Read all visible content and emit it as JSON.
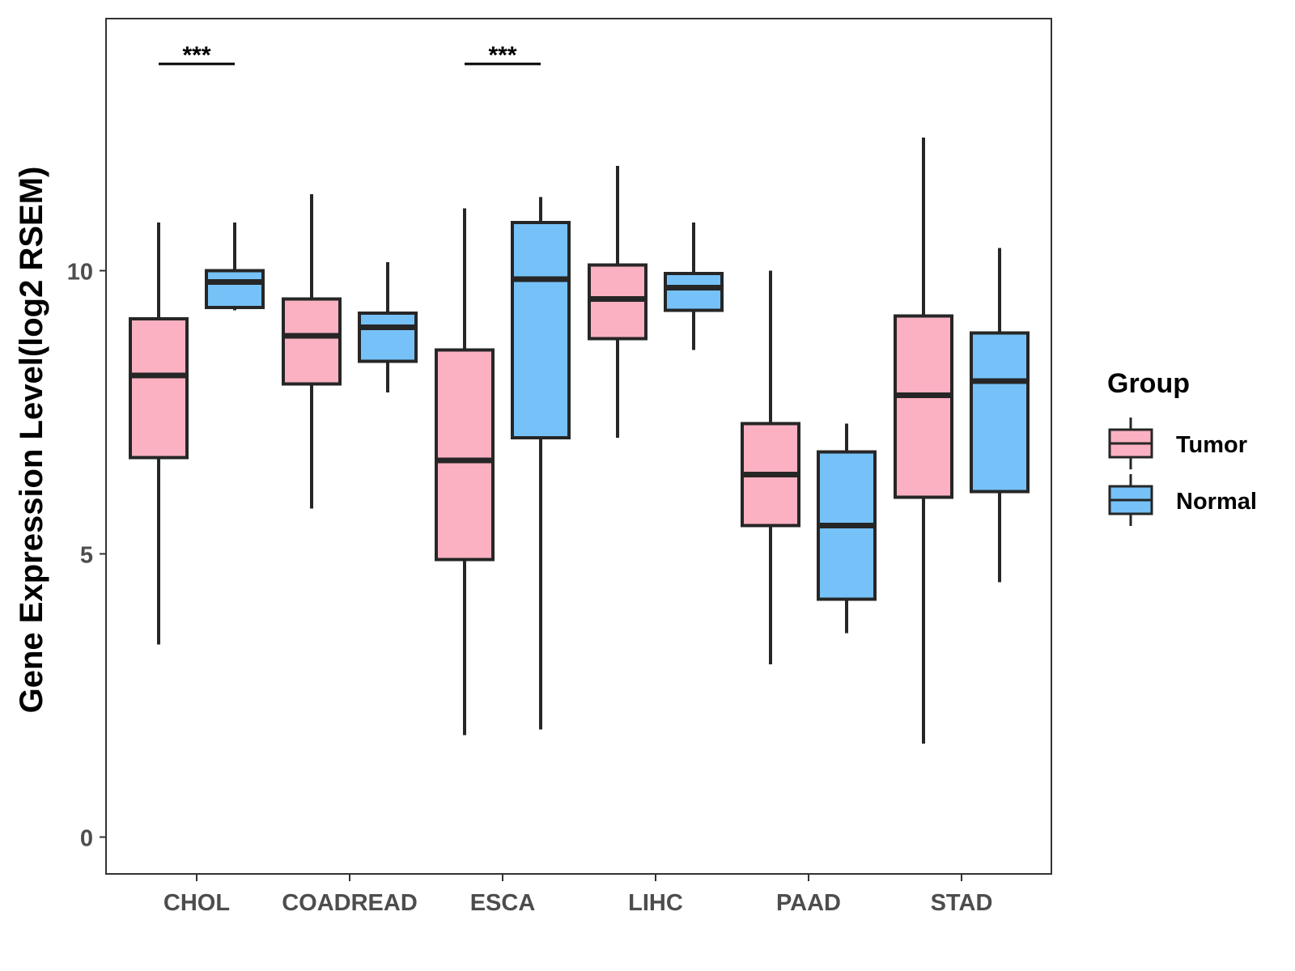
{
  "chart_data": {
    "type": "boxplot",
    "title": "",
    "xlabel": "",
    "ylabel": "Gene Expression Level(log2 RSEM)",
    "ylim": [
      -0.65,
      14.45
    ],
    "yticks": [
      0,
      5,
      10
    ],
    "grid": false,
    "legend": {
      "title": "Group",
      "position": "right",
      "entries": [
        "Tumor",
        "Normal"
      ]
    },
    "colors": {
      "Tumor": "#fbb1c2",
      "Normal": "#76c2f8",
      "stroke": "#262626"
    },
    "categories": [
      "CHOL",
      "COADREAD",
      "ESCA",
      "LIHC",
      "PAAD",
      "STAD"
    ],
    "series": [
      {
        "name": "Tumor",
        "boxes": [
          {
            "category": "CHOL",
            "whisker_low": 3.4,
            "q1": 6.7,
            "median": 8.15,
            "q3": 9.15,
            "whisker_high": 10.85
          },
          {
            "category": "COADREAD",
            "whisker_low": 5.8,
            "q1": 8.0,
            "median": 8.85,
            "q3": 9.5,
            "whisker_high": 11.35
          },
          {
            "category": "ESCA",
            "whisker_low": 1.8,
            "q1": 4.9,
            "median": 6.65,
            "q3": 8.6,
            "whisker_high": 11.1
          },
          {
            "category": "LIHC",
            "whisker_low": 7.05,
            "q1": 8.8,
            "median": 9.5,
            "q3": 10.1,
            "whisker_high": 11.85
          },
          {
            "category": "PAAD",
            "whisker_low": 3.05,
            "q1": 5.5,
            "median": 6.4,
            "q3": 7.3,
            "whisker_high": 10.0
          },
          {
            "category": "STAD",
            "whisker_low": 1.65,
            "q1": 6.0,
            "median": 7.8,
            "q3": 9.2,
            "whisker_high": 12.35
          }
        ]
      },
      {
        "name": "Normal",
        "boxes": [
          {
            "category": "CHOL",
            "whisker_low": 9.3,
            "q1": 9.35,
            "median": 9.8,
            "q3": 10.0,
            "whisker_high": 10.85
          },
          {
            "category": "COADREAD",
            "whisker_low": 7.85,
            "q1": 8.4,
            "median": 9.0,
            "q3": 9.25,
            "whisker_high": 10.15
          },
          {
            "category": "ESCA",
            "whisker_low": 1.9,
            "q1": 7.05,
            "median": 9.85,
            "q3": 10.85,
            "whisker_high": 11.3
          },
          {
            "category": "LIHC",
            "whisker_low": 8.6,
            "q1": 9.3,
            "median": 9.7,
            "q3": 9.95,
            "whisker_high": 10.85
          },
          {
            "category": "PAAD",
            "whisker_low": 3.6,
            "q1": 4.2,
            "median": 5.5,
            "q3": 6.8,
            "whisker_high": 7.3
          },
          {
            "category": "STAD",
            "whisker_low": 4.5,
            "q1": 6.1,
            "median": 8.05,
            "q3": 8.9,
            "whisker_high": 10.4
          }
        ]
      }
    ],
    "annotations": [
      {
        "category": "CHOL",
        "label": "***",
        "y": 13.65
      },
      {
        "category": "ESCA",
        "label": "***",
        "y": 13.65
      }
    ]
  }
}
